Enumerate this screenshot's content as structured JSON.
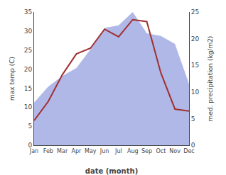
{
  "chart_data": {
    "type": "line",
    "xlabel": "date (month)",
    "ylabel": "max temp (C)",
    "y2label": "med. precipitation (kg/m2)",
    "categories": [
      "Jan",
      "Feb",
      "Mar",
      "Apr",
      "May",
      "Jun",
      "Jul",
      "Aug",
      "Sep",
      "Oct",
      "Nov",
      "Dec"
    ],
    "series": [
      {
        "type": "area",
        "axis": "y2",
        "color": "#b0b8e8",
        "values": [
          8.0,
          11.0,
          13.0,
          14.5,
          18.0,
          22.0,
          22.5,
          25.0,
          21.0,
          20.5,
          19.0,
          11.5
        ]
      },
      {
        "type": "line",
        "color": "#a03030",
        "values": [
          6.5,
          11.5,
          18.5,
          24.0,
          25.5,
          30.5,
          28.5,
          33.0,
          32.5,
          19.0,
          9.5,
          9.0
        ]
      }
    ],
    "ylim": [
      0,
      35
    ],
    "yticks": [
      0,
      5,
      10,
      15,
      20,
      25,
      30,
      35
    ],
    "y2lim": [
      0,
      25
    ],
    "y2ticks": [
      0,
      5,
      10,
      15,
      20,
      25
    ],
    "grid": false
  }
}
